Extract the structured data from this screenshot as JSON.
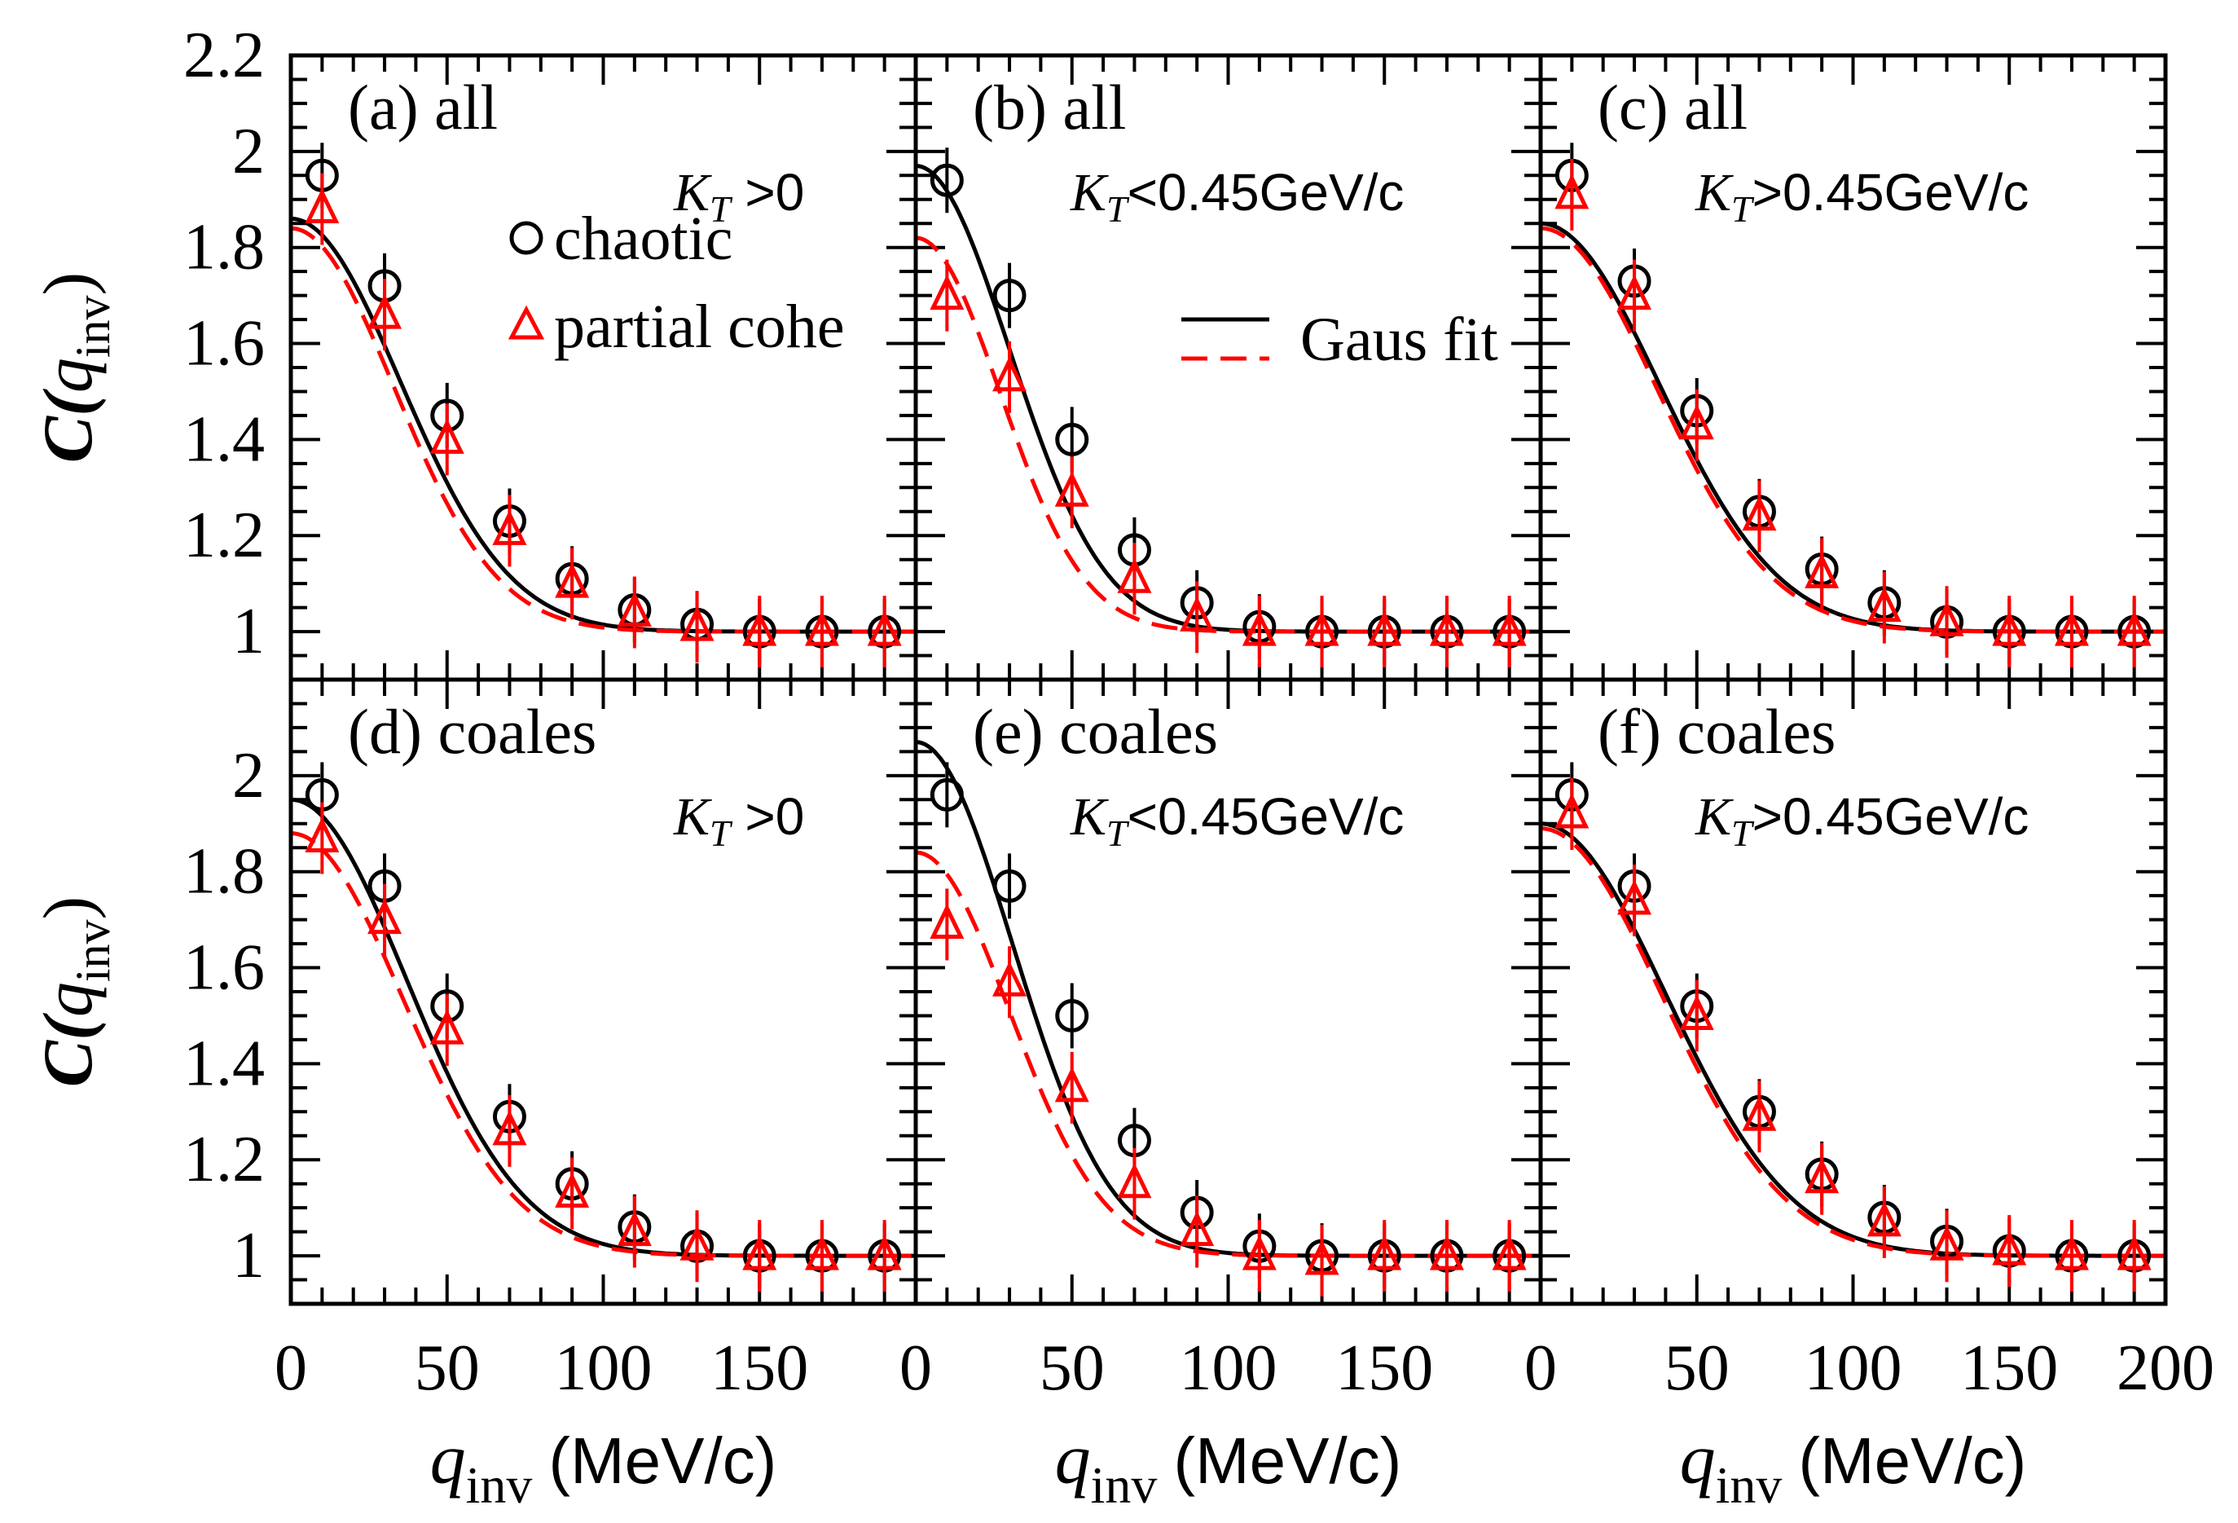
{
  "figure": {
    "y_label_main": "C(",
    "y_label_sub": "inv",
    "y_label_q": "q",
    "y_label_close": ")",
    "x_label_q": "q",
    "x_label_sub": "inv",
    "x_label_unit": "(MeV/c)"
  },
  "legend": {
    "chaotic": "chaotic",
    "partial": "partial cohe",
    "fit": "Gaus fit"
  },
  "colors": {
    "chaotic": "#000000",
    "partial": "#ff0000"
  },
  "chart_data": [
    {
      "type": "scatter",
      "panel": "(a) all",
      "kt": "K_T >0",
      "kt_main": "K",
      "kt_sub": "T",
      "kt_rest": " >0",
      "x": [
        10,
        30,
        50,
        70,
        90,
        110,
        130,
        150,
        170,
        190
      ],
      "series": [
        {
          "name": "chaotic",
          "values": [
            1.95,
            1.72,
            1.45,
            1.23,
            1.11,
            1.045,
            1.015,
            1.0,
            1.0,
            1.0
          ]
        },
        {
          "name": "partial cohe",
          "values": [
            1.88,
            1.66,
            1.4,
            1.21,
            1.1,
            1.04,
            1.01,
            1.0,
            1.0,
            1.0
          ]
        }
      ],
      "fits": [
        {
          "name": "chaotic",
          "lambda": 0.86,
          "sigma": 35
        },
        {
          "name": "partial cohe",
          "lambda": 0.84,
          "sigma": 33
        }
      ],
      "xlim": [
        0,
        200
      ],
      "ylim": [
        0.9,
        2.2
      ]
    },
    {
      "type": "scatter",
      "panel": "(b) all",
      "kt": "K_T<0.45GeV/c",
      "kt_main": "K",
      "kt_sub": "T",
      "kt_rest": "<0.45GeV/c",
      "x": [
        10,
        30,
        50,
        70,
        90,
        110,
        130,
        150,
        170,
        190
      ],
      "series": [
        {
          "name": "chaotic",
          "values": [
            1.94,
            1.7,
            1.4,
            1.17,
            1.06,
            1.01,
            1.0,
            1.0,
            1.0,
            1.0
          ]
        },
        {
          "name": "partial cohe",
          "values": [
            1.7,
            1.53,
            1.29,
            1.11,
            1.03,
            1.0,
            1.0,
            1.0,
            1.0,
            1.0
          ]
        }
      ],
      "fits": [
        {
          "name": "chaotic",
          "lambda": 0.97,
          "sigma": 30
        },
        {
          "name": "partial cohe",
          "lambda": 0.82,
          "sigma": 27
        }
      ],
      "xlim": [
        0,
        200
      ],
      "ylim": [
        0.9,
        2.2
      ]
    },
    {
      "type": "scatter",
      "panel": "(c) all",
      "kt": "K_T>0.45GeV/c",
      "kt_main": "K",
      "kt_sub": "T",
      "kt_rest": ">0.45GeV/c",
      "x": [
        10,
        30,
        50,
        70,
        90,
        110,
        130,
        150,
        170,
        190
      ],
      "series": [
        {
          "name": "chaotic",
          "values": [
            1.95,
            1.73,
            1.46,
            1.25,
            1.13,
            1.06,
            1.02,
            1.0,
            1.0,
            1.0
          ]
        },
        {
          "name": "partial cohe",
          "values": [
            1.91,
            1.7,
            1.43,
            1.24,
            1.12,
            1.05,
            1.02,
            1.0,
            1.0,
            1.0
          ]
        }
      ],
      "fits": [
        {
          "name": "chaotic",
          "lambda": 0.85,
          "sigma": 38
        },
        {
          "name": "partial cohe",
          "lambda": 0.84,
          "sigma": 37
        }
      ],
      "xlim": [
        0,
        200
      ],
      "ylim": [
        0.9,
        2.2
      ]
    },
    {
      "type": "scatter",
      "panel": "(d) coales",
      "kt": "K_T >0",
      "kt_main": "K",
      "kt_sub": "T",
      "kt_rest": " >0",
      "x": [
        10,
        30,
        50,
        70,
        90,
        110,
        130,
        150,
        170,
        190
      ],
      "series": [
        {
          "name": "chaotic",
          "values": [
            1.96,
            1.77,
            1.52,
            1.29,
            1.15,
            1.06,
            1.02,
            1.0,
            1.0,
            1.0
          ]
        },
        {
          "name": "partial cohe",
          "values": [
            1.87,
            1.7,
            1.47,
            1.26,
            1.13,
            1.05,
            1.02,
            1.0,
            1.0,
            1.0
          ]
        }
      ],
      "fits": [
        {
          "name": "chaotic",
          "lambda": 0.95,
          "sigma": 37
        },
        {
          "name": "partial cohe",
          "lambda": 0.88,
          "sigma": 36
        }
      ],
      "xlim": [
        0,
        200
      ],
      "ylim": [
        0.9,
        2.2
      ]
    },
    {
      "type": "scatter",
      "panel": "(e) coales",
      "kt": "K_T<0.45GeV/c",
      "kt_main": "K",
      "kt_sub": "T",
      "kt_rest": "<0.45GeV/c",
      "x": [
        10,
        30,
        50,
        70,
        90,
        110,
        130,
        150,
        170,
        190
      ],
      "series": [
        {
          "name": "chaotic",
          "values": [
            1.96,
            1.77,
            1.5,
            1.24,
            1.09,
            1.02,
            1.0,
            1.0,
            1.0,
            1.0
          ]
        },
        {
          "name": "partial cohe",
          "values": [
            1.69,
            1.57,
            1.35,
            1.15,
            1.05,
            1.0,
            0.99,
            1.0,
            1.0,
            1.0
          ]
        }
      ],
      "fits": [
        {
          "name": "chaotic",
          "lambda": 1.07,
          "sigma": 31
        },
        {
          "name": "partial cohe",
          "lambda": 0.84,
          "sigma": 30
        }
      ],
      "xlim": [
        0,
        200
      ],
      "ylim": [
        0.9,
        2.2
      ]
    },
    {
      "type": "scatter",
      "panel": "(f) coales",
      "kt": "K_T>0.45GeV/c",
      "kt_main": "K",
      "kt_sub": "T",
      "kt_rest": ">0.45GeV/c",
      "x": [
        10,
        30,
        50,
        70,
        90,
        110,
        130,
        150,
        170,
        190
      ],
      "series": [
        {
          "name": "chaotic",
          "values": [
            1.96,
            1.77,
            1.52,
            1.3,
            1.17,
            1.08,
            1.03,
            1.01,
            1.0,
            1.0
          ]
        },
        {
          "name": "partial cohe",
          "values": [
            1.92,
            1.74,
            1.5,
            1.29,
            1.16,
            1.07,
            1.02,
            1.01,
            1.0,
            1.0
          ]
        }
      ],
      "fits": [
        {
          "name": "chaotic",
          "lambda": 0.9,
          "sigma": 40
        },
        {
          "name": "partial cohe",
          "lambda": 0.89,
          "sigma": 39
        }
      ],
      "xlim": [
        0,
        200
      ],
      "ylim": [
        0.9,
        2.2
      ]
    }
  ],
  "axes": {
    "y_ticks_top": [
      "2.2",
      "2",
      "1.8",
      "1.6",
      "1.4",
      "1.2",
      "1"
    ],
    "y_ticks_bottom": [
      "2",
      "1.8",
      "1.6",
      "1.4",
      "1.2",
      "1"
    ],
    "x_ticks_left": [
      "0",
      "50",
      "100",
      "150"
    ],
    "x_ticks_mid": [
      "0",
      "50",
      "100",
      "150"
    ],
    "x_ticks_right": [
      "0",
      "50",
      "100",
      "150",
      "200"
    ]
  }
}
